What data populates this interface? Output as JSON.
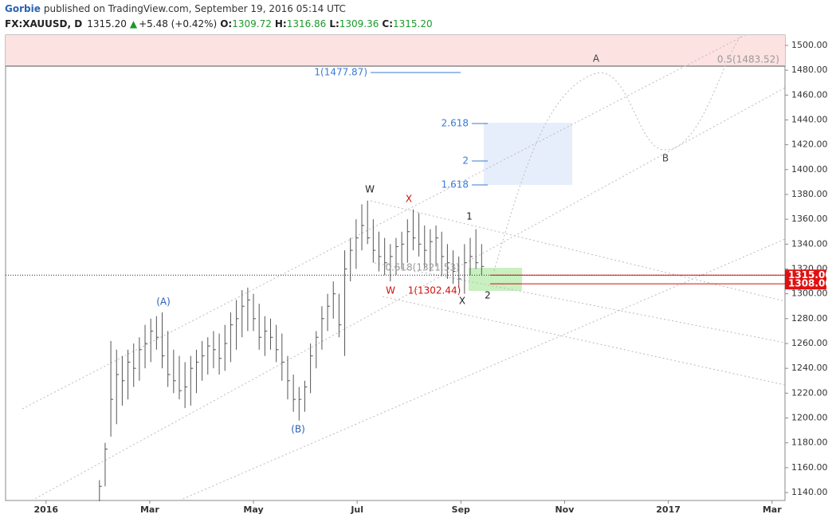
{
  "header": {
    "author": "Gorbie",
    "published": "published on TradingView.com, September 19, 2016 05:14 UTC",
    "symbol": "FX:XAUUSD, D",
    "price": "1315.20",
    "arrow": "▲",
    "change": "+5.48 (+0.42%)",
    "open_label": "O:",
    "open": "1309.72",
    "high_label": "H:",
    "high": "1316.86",
    "low_label": "L:",
    "low": "1309.36",
    "close_label": "C:",
    "close": "1315.20"
  },
  "chart_data": {
    "type": "ohlc",
    "color": "#555555",
    "x": [
      1.03,
      1.14,
      1.25,
      1.36,
      1.47,
      1.58,
      1.69,
      1.8,
      1.91,
      2.02,
      2.13,
      2.24,
      2.35,
      2.46,
      2.57,
      2.68,
      2.79,
      2.9,
      3.01,
      3.12,
      3.23,
      3.34,
      3.45,
      3.56,
      3.67,
      3.78,
      3.89,
      4.0,
      4.11,
      4.22,
      4.33,
      4.44,
      4.55,
      4.66,
      4.77,
      4.88,
      4.99,
      5.1,
      5.21,
      5.32,
      5.43,
      5.54,
      5.65,
      5.76,
      5.87,
      5.98,
      6.09,
      6.2,
      6.31,
      6.42,
      6.53,
      6.64,
      6.75,
      6.86,
      6.97,
      7.08,
      7.19,
      7.3,
      7.41,
      7.52,
      7.63,
      7.74,
      7.85,
      7.96,
      8.07,
      8.18,
      8.29,
      8.4
    ],
    "high": [
      1150,
      1180,
      1262,
      1255,
      1250,
      1255,
      1260,
      1265,
      1275,
      1280,
      1282,
      1285,
      1270,
      1255,
      1250,
      1245,
      1250,
      1255,
      1262,
      1265,
      1270,
      1268,
      1275,
      1285,
      1295,
      1303,
      1305,
      1300,
      1292,
      1282,
      1280,
      1275,
      1268,
      1250,
      1235,
      1225,
      1230,
      1260,
      1270,
      1290,
      1300,
      1310,
      1300,
      1335,
      1345,
      1360,
      1372,
      1375,
      1360,
      1350,
      1345,
      1340,
      1345,
      1350,
      1360,
      1368,
      1365,
      1355,
      1352,
      1355,
      1350,
      1340,
      1335,
      1330,
      1340,
      1345,
      1352,
      1340
    ],
    "low": [
      1133,
      1145,
      1185,
      1195,
      1210,
      1215,
      1225,
      1230,
      1240,
      1245,
      1255,
      1240,
      1225,
      1220,
      1215,
      1208,
      1210,
      1220,
      1230,
      1235,
      1240,
      1235,
      1238,
      1245,
      1255,
      1265,
      1270,
      1270,
      1255,
      1250,
      1255,
      1245,
      1230,
      1215,
      1205,
      1198,
      1205,
      1220,
      1240,
      1255,
      1270,
      1280,
      1265,
      1250,
      1310,
      1320,
      1335,
      1340,
      1325,
      1318,
      1315,
      1310,
      1315,
      1320,
      1325,
      1335,
      1330,
      1320,
      1318,
      1322,
      1315,
      1312,
      1308,
      1305,
      1300,
      1315,
      1320,
      1315
    ],
    "close": [
      1145,
      1175,
      1215,
      1235,
      1230,
      1245,
      1240,
      1255,
      1260,
      1270,
      1265,
      1250,
      1235,
      1230,
      1222,
      1225,
      1240,
      1245,
      1250,
      1258,
      1255,
      1248,
      1260,
      1275,
      1280,
      1290,
      1295,
      1280,
      1265,
      1270,
      1265,
      1255,
      1245,
      1230,
      1215,
      1215,
      1225,
      1250,
      1265,
      1280,
      1290,
      1300,
      1275,
      1320,
      1335,
      1345,
      1355,
      1345,
      1335,
      1330,
      1325,
      1330,
      1338,
      1340,
      1350,
      1345,
      1340,
      1335,
      1342,
      1345,
      1330,
      1325,
      1318,
      1312,
      1325,
      1330,
      1325,
      1322
    ],
    "ylim": [
      1133.6,
      1508.3
    ],
    "yticks": [
      {
        "value": 1140,
        "label": "1140.00"
      },
      {
        "value": 1160,
        "label": "1160.00"
      },
      {
        "value": 1180,
        "label": "1180.00"
      },
      {
        "value": 1200,
        "label": "1200.00"
      },
      {
        "value": 1220,
        "label": "1220.00"
      },
      {
        "value": 1240,
        "label": "1240.00"
      },
      {
        "value": 1260,
        "label": "1260.00"
      },
      {
        "value": 1280,
        "label": "1280.00"
      },
      {
        "value": 1300,
        "label": "1300.00"
      },
      {
        "value": 1320,
        "label": "1320.00"
      },
      {
        "value": 1340,
        "label": "1340.00"
      },
      {
        "value": 1360,
        "label": "1360.00"
      },
      {
        "value": 1380,
        "label": "1380.00"
      },
      {
        "value": 1400,
        "label": "1400.00"
      },
      {
        "value": 1420,
        "label": "1420.00"
      },
      {
        "value": 1440,
        "label": "1440.00"
      },
      {
        "value": 1460,
        "label": "1460.00"
      },
      {
        "value": 1480,
        "label": "1480.00"
      },
      {
        "value": 1500,
        "label": "1500.00"
      }
    ],
    "xlim": [
      -0.78,
      14.25
    ],
    "xticks": [
      {
        "value": 0,
        "label": "2016"
      },
      {
        "value": 2,
        "label": "Mar"
      },
      {
        "value": 4,
        "label": "May"
      },
      {
        "value": 6,
        "label": "Jul"
      },
      {
        "value": 8,
        "label": "Sep"
      },
      {
        "value": 10,
        "label": "Nov"
      },
      {
        "value": 12,
        "label": "2017"
      },
      {
        "value": 14,
        "label": "Mar"
      }
    ],
    "price_lines": [
      {
        "value": 1315,
        "label": "1315.00"
      },
      {
        "value": 1308,
        "label": "1308.00"
      }
    ],
    "annotations": [
      {
        "text": "(A)",
        "color": "#2962b6"
      },
      {
        "text": "(B)",
        "color": "#2962b6"
      },
      {
        "text": "W",
        "color": "#222"
      },
      {
        "text": "X",
        "color": "#d01010"
      },
      {
        "text": "W",
        "color": "#d01010"
      },
      {
        "text": "1(1302.44)",
        "color": "#d01010"
      },
      {
        "text": "0.618(1321.53)",
        "color": "#999"
      },
      {
        "text": "X",
        "color": "#222"
      },
      {
        "text": "1",
        "color": "#222"
      },
      {
        "text": "2",
        "color": "#222"
      },
      {
        "text": "A",
        "color": "#444"
      },
      {
        "text": "B",
        "color": "#444"
      },
      {
        "text": "0.5(1483.52)",
        "color": "#999"
      },
      {
        "text": "1(1477.87)",
        "color": "#3a7bd5"
      },
      {
        "text": "2.618",
        "color": "#3a7bd5"
      },
      {
        "text": "2",
        "color": "#3a7bd5"
      },
      {
        "text": "1.618",
        "color": "#3a7bd5"
      }
    ]
  }
}
